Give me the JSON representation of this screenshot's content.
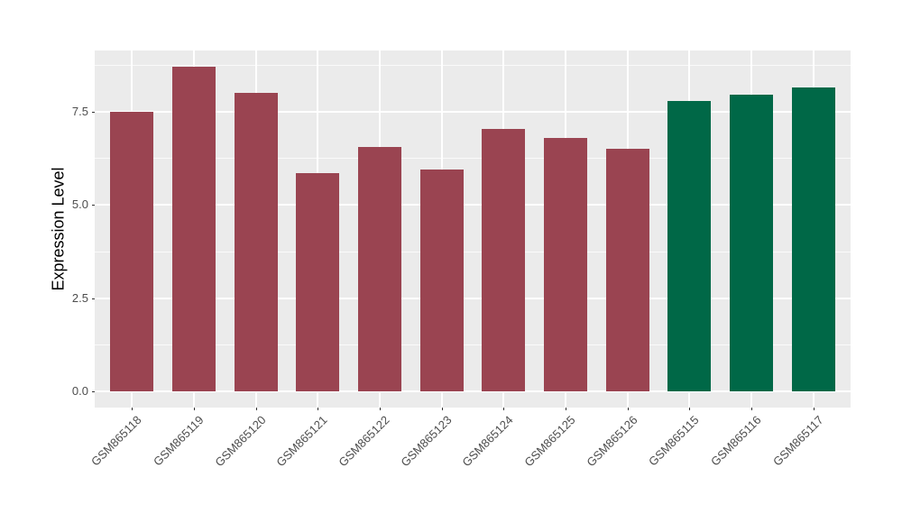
{
  "chart_data": {
    "type": "bar",
    "title": "",
    "xlabel": "",
    "ylabel": "Expression Level",
    "categories": [
      "GSM865118",
      "GSM865119",
      "GSM865120",
      "GSM865121",
      "GSM865122",
      "GSM865123",
      "GSM865124",
      "GSM865125",
      "GSM865126",
      "GSM865115",
      "GSM865116",
      "GSM865117"
    ],
    "values": [
      7.5,
      8.7,
      8.0,
      5.85,
      6.55,
      5.95,
      7.05,
      6.8,
      6.5,
      7.8,
      7.95,
      8.15
    ],
    "bar_groups": [
      0,
      0,
      0,
      0,
      0,
      0,
      0,
      0,
      0,
      1,
      1,
      1
    ],
    "group_colors": [
      "#9A4451",
      "#006847"
    ],
    "ylim": [
      0,
      9.15
    ],
    "yticks": [
      0,
      2.5,
      5,
      7.5
    ],
    "ytick_labels": [
      "0.0",
      "2.5",
      "5.0",
      "7.5"
    ],
    "y_minor_ticks": [
      1.25,
      3.75,
      6.25,
      8.75
    ],
    "grid": "major-and-minor, white on grey panel",
    "legend_position": "none",
    "panel_bg": "#EBEBEB",
    "x_label_angle_deg": 45
  }
}
